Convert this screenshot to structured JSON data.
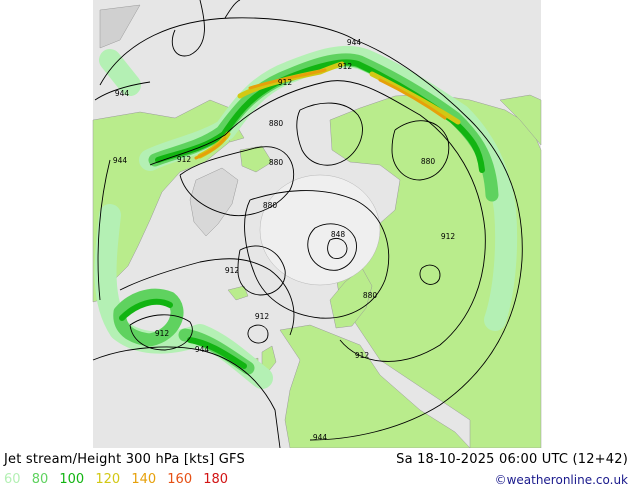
{
  "title": "Jet stream/Height 300 hPa [kts] GFS",
  "valid_time": "Sa 18-10-2025 06:00 UTC (12+42)",
  "credit": "©weatheronline.co.uk",
  "legend": [
    {
      "label": "60",
      "color": "#b4f0b4"
    },
    {
      "label": "80",
      "color": "#5fd25f"
    },
    {
      "label": "100",
      "color": "#12b412"
    },
    {
      "label": "120",
      "color": "#d2c814"
    },
    {
      "label": "140",
      "color": "#e6a00a"
    },
    {
      "label": "160",
      "color": "#e65014"
    },
    {
      "label": "180",
      "color": "#d21414"
    }
  ],
  "contour_labels": {
    "l944a": "944",
    "l944b": "944",
    "l944c": "944",
    "l944d": "944",
    "l944e": "944",
    "l912a": "912",
    "l912b": "912",
    "l912c": "912",
    "l912d": "912",
    "l912e": "912",
    "l912f": "912",
    "l912g": "912",
    "l912h": "912",
    "l880a": "880",
    "l880b": "880",
    "l880c": "880",
    "l880d": "880",
    "l880e": "880",
    "l848": "848"
  }
}
